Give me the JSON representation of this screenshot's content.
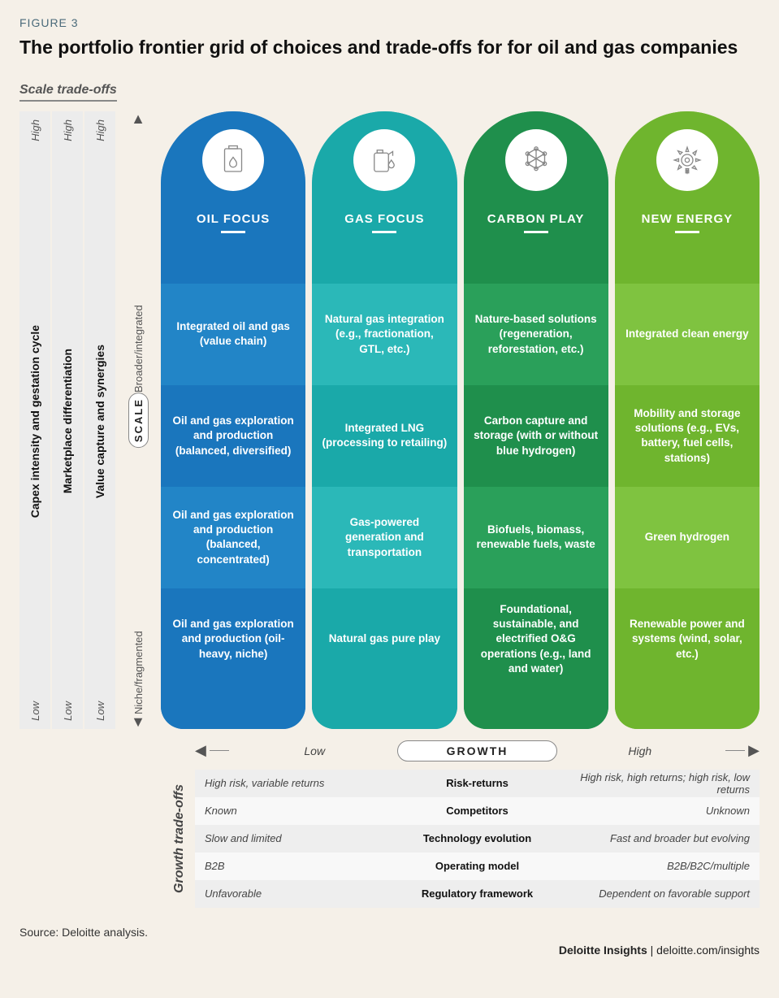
{
  "figure_label": "FIGURE 3",
  "title": "The portfolio frontier grid of choices and trade-offs for for oil and gas companies",
  "scale_tradeoffs_heading": "Scale trade-offs",
  "left_bars": [
    {
      "high": "High",
      "label": "Capex intensity and gestation cycle",
      "low": "Low"
    },
    {
      "high": "High",
      "label": "Marketplace  differentiation",
      "low": "Low"
    },
    {
      "high": "High",
      "label": "Value capture and synergies",
      "low": "Low"
    }
  ],
  "scale_axis": {
    "top": "Broader/integrated",
    "pill": "SCALE",
    "bottom": "Niche/fragmented"
  },
  "columns": [
    {
      "title": "OIL FOCUS",
      "head_color": "#1a76bd",
      "foot_color": "#1a76bd",
      "cell_colors": [
        "#2285c7",
        "#1a76bd",
        "#2285c7",
        "#1a76bd"
      ],
      "icon": "oil",
      "cells": [
        "Integrated oil and gas (value chain)",
        "Oil and gas exploration and production (balanced, diversified)",
        "Oil and gas exploration and production (balanced, concentrated)",
        "Oil and gas exploration and production (oil-heavy, niche)"
      ]
    },
    {
      "title": "GAS FOCUS",
      "head_color": "#1aa9a9",
      "foot_color": "#1aa9a9",
      "cell_colors": [
        "#2bb8b8",
        "#1aa9a9",
        "#2bb8b8",
        "#1aa9a9"
      ],
      "icon": "gas",
      "cells": [
        "Natural gas integration (e.g., fractionation, GTL, etc.)",
        "Integrated LNG (processing to retailing)",
        "Gas-powered generation and transportation",
        "Natural gas pure play"
      ]
    },
    {
      "title": "CARBON PLAY",
      "head_color": "#1f8f4c",
      "foot_color": "#1f8f4c",
      "cell_colors": [
        "#2aa05a",
        "#1f8f4c",
        "#2aa05a",
        "#1f8f4c"
      ],
      "icon": "carbon",
      "cells": [
        "Nature-based solutions (regeneration, reforestation, etc.)",
        "Carbon capture and storage (with or without blue hydrogen)",
        "Biofuels, biomass, renewable fuels, waste",
        "Foundational, sustainable, and electrified O&G operations (e.g., land and water)"
      ]
    },
    {
      "title": "NEW ENERGY",
      "head_color": "#6fb52e",
      "foot_color": "#6fb52e",
      "cell_colors": [
        "#7fc340",
        "#6fb52e",
        "#7fc340",
        "#6fb52e"
      ],
      "icon": "energy",
      "cells": [
        "Integrated clean energy",
        "Mobility and storage solutions (e.g., EVs, battery, fuel cells, stations)",
        "Green hydrogen",
        "Renewable power and systems (wind, solar, etc.)"
      ]
    }
  ],
  "growth_axis": {
    "low": "Low",
    "pill": "GROWTH",
    "high": "High"
  },
  "growth_tradeoffs_heading": "Growth trade-offs",
  "growth_rows": [
    {
      "l": "High risk, variable returns",
      "c": "Risk-returns",
      "r": "High risk, high returns; high risk, low returns"
    },
    {
      "l": "Known",
      "c": "Competitors",
      "r": "Unknown"
    },
    {
      "l": "Slow and limited",
      "c": "Technology evolution",
      "r": "Fast and broader but evolving"
    },
    {
      "l": "B2B",
      "c": "Operating model",
      "r": "B2B/B2C/multiple"
    },
    {
      "l": "Unfavorable",
      "c": "Regulatory framework",
      "r": "Dependent on favorable support"
    }
  ],
  "source": "Source: Deloitte analysis.",
  "footer_brand": "Deloitte Insights",
  "footer_url": "deloitte.com/insights",
  "style": {
    "page_bg": "#f5f0e8",
    "bar_bg": "#ececec",
    "text_dark": "#111111",
    "text_muted": "#555555"
  }
}
